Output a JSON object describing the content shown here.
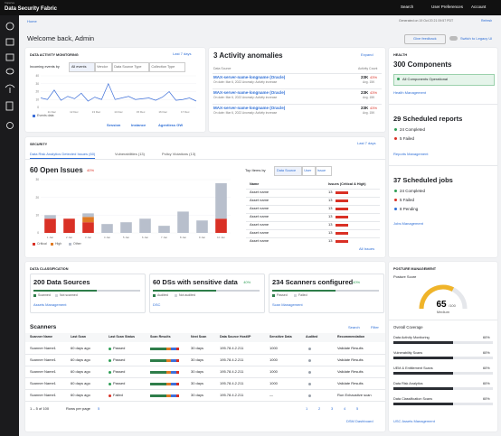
{
  "header": {
    "brand_small": "Imperva",
    "brand": "Data Security Fabric",
    "search": "Search",
    "preferences": "User Preferences",
    "account": "Account"
  },
  "breadcrumb": "Home",
  "generated": "Generated on 19 Oct 20 21 09:57 PDT",
  "refresh": "Refresh",
  "welcome": "Welcome back, Admin",
  "feedback": "Give feedback",
  "legacy": "Switch to Legacy UI",
  "dam": {
    "title": "DATA ACTIVITY MONITORING",
    "period": "Last 7 days",
    "filter_label": "Incoming events by",
    "tabs": [
      "All events",
      "Vendor",
      "Data Source Type",
      "Collection Type"
    ],
    "chart": {
      "type": "line",
      "xlabels": [
        "11 Dec",
        "12 Dec",
        "13 Dec",
        "14 Dec",
        "15 Dec",
        "16 Dec",
        "17 Dec"
      ],
      "values": [
        12,
        10,
        22,
        9,
        14,
        11,
        18,
        8,
        13,
        10,
        30,
        10,
        12,
        14,
        10,
        11,
        12,
        9,
        13,
        20,
        9,
        10,
        12,
        8
      ],
      "ylim": [
        0,
        40
      ],
      "yticks": [
        0,
        10,
        20,
        30,
        40
      ],
      "color": "#3d6fd9",
      "legend": "Events data"
    },
    "links": [
      "Session",
      "Instance",
      "Agentless GW"
    ]
  },
  "anomalies": {
    "title": "3 Activity anomalies",
    "expand": "Expand",
    "col_source": "Data Source",
    "col_count": "Activity Count",
    "rows": [
      {
        "name": "MAX-server-name-longname (Oracle)",
        "sub": "On date: Mar 6, 2022   Anomaly: Activity increase",
        "count": "23K",
        "change": "43%",
        "avg": "Avg. 15K"
      },
      {
        "name": "MAX-server-name-longname (Oracle)",
        "sub": "On date: Mar 6, 2022   Anomaly: Activity increase",
        "count": "23K",
        "change": "43%",
        "avg": "Avg. 15K"
      },
      {
        "name": "MAX-server-name-longname (Oracle)",
        "sub": "On date: Mar 6, 2022   Anomaly: Activity increase",
        "count": "23K",
        "change": "43%",
        "avg": "Avg. 15K"
      }
    ]
  },
  "health": {
    "label": "HEALTH",
    "components": "300 Components",
    "status": "All Components Operational",
    "health_link": "Health Management",
    "reports": "29 Scheduled reports",
    "reports_items": [
      {
        "text": "24 Completed",
        "color": "#2e9e55"
      },
      {
        "text": "5 Failed",
        "color": "#d93025"
      }
    ],
    "reports_link": "Reports Management",
    "jobs": "37 Scheduled jobs",
    "jobs_items": [
      {
        "text": "24 Completed",
        "color": "#2e9e55"
      },
      {
        "text": "5 Failed",
        "color": "#d93025"
      },
      {
        "text": "8 Pending",
        "color": "#2f6fd6"
      }
    ],
    "jobs_link": "Jobs Management"
  },
  "security": {
    "label": "SECURITY",
    "period": "Last 7 days",
    "tabs": [
      "Data Risk Analytics Detected Issues (60)",
      "Vulnerabilities (13)",
      "Policy Violations (13)"
    ],
    "open": "60 Open Issues",
    "change": "40%",
    "chart": {
      "type": "bar",
      "categories": [
        "1 Jan",
        "2 Jan",
        "3 Jan",
        "4 Jan",
        "5 Jan",
        "6 Jan",
        "7 Jan",
        "8 Jan",
        "9 Jan",
        "10 Jan"
      ],
      "ylim": [
        0,
        30
      ],
      "yticks": [
        0,
        10,
        20,
        30
      ],
      "series": [
        {
          "name": "Critical",
          "color": "#d93025",
          "values": [
            8,
            8,
            6,
            0,
            0,
            0,
            0,
            0,
            0,
            8
          ]
        },
        {
          "name": "High",
          "color": "#e07b24",
          "values": [
            0,
            0,
            3,
            0,
            0,
            0,
            0,
            0,
            0,
            0
          ]
        },
        {
          "name": "Other",
          "color": "#b8bfcc",
          "values": [
            2,
            0,
            2,
            5,
            6,
            8,
            4,
            12,
            7,
            20
          ]
        }
      ]
    },
    "top_label": "Top Items by",
    "toggles": [
      "Data Source",
      "User",
      "Issue"
    ],
    "col_name": "Name",
    "col_issues": "Issues (Critical & High)",
    "rows": [
      {
        "name": "Asset name",
        "value": 13
      },
      {
        "name": "Asset name",
        "value": 13
      },
      {
        "name": "Asset name",
        "value": 13
      },
      {
        "name": "Asset name",
        "value": 13
      },
      {
        "name": "Asset name",
        "value": 13
      },
      {
        "name": "Asset name",
        "value": 13
      },
      {
        "name": "Asset name",
        "value": 13
      }
    ],
    "all_link": "All Issues"
  },
  "classification": {
    "label": "DATA CLASSIFICATION",
    "cards": [
      {
        "title": "200 Data Sources",
        "legend": [
          "Scanned",
          "Not scanned"
        ],
        "link": "Assets Management"
      },
      {
        "title": "60 DSs with sensitive data",
        "change": "40%",
        "legend": [
          "Audited",
          "Not audited"
        ],
        "link": "DSC"
      },
      {
        "title": "234 Scanners configured",
        "change": "40%",
        "legend": [
          "Passed",
          "Failed"
        ],
        "link": "Scan Management"
      }
    ]
  },
  "scanners": {
    "title": "Scanners",
    "search": "Search",
    "filter": "Filter",
    "columns": [
      "Scanner Name",
      "Last Scan",
      "Last Scan Status",
      "Scan Results",
      "Next Scan",
      "Data Source Host/IP",
      "Sensitive Data",
      "Audited",
      "Recommendation"
    ],
    "rows": [
      {
        "name": "Scanner Name1",
        "last_scan": "60 days ago",
        "status": "Passed",
        "status_color": "#2e9e55",
        "next_scan": "30 days",
        "host": "195.78.4.2.211",
        "sensitive": "1000",
        "recommendation": "Validate Results"
      },
      {
        "name": "Scanner Name1",
        "last_scan": "60 days ago",
        "status": "Passed",
        "status_color": "#2e9e55",
        "next_scan": "30 days",
        "host": "195.78.4.2.211",
        "sensitive": "1000",
        "recommendation": "Validate Results"
      },
      {
        "name": "Scanner Name1",
        "last_scan": "60 days ago",
        "status": "Passed",
        "status_color": "#2e9e55",
        "next_scan": "30 days",
        "host": "195.78.4.2.211",
        "sensitive": "1000",
        "recommendation": "Validate Results"
      },
      {
        "name": "Scanner Name1",
        "last_scan": "60 days ago",
        "status": "Passed",
        "status_color": "#2e9e55",
        "next_scan": "30 days",
        "host": "195.78.4.2.211",
        "sensitive": "1000",
        "recommendation": "Validate Results"
      },
      {
        "name": "Scanner Name1",
        "last_scan": "60 days ago",
        "status": "Failed",
        "status_color": "#d93025",
        "next_scan": "30 days",
        "host": "195.78.4.2.211",
        "sensitive": "—",
        "recommendation": "Run Exhaustive scan"
      }
    ],
    "range": "1 – 5 of 100",
    "rows_label": "Rows per page",
    "rows_value": "5",
    "pages": [
      "1",
      "2",
      "3",
      "4",
      "5"
    ],
    "link": "DSM Dashboard"
  },
  "posture": {
    "label": "POSTURE MANAGEMENT",
    "score_label": "Posture Score",
    "score": 65,
    "max": "/100",
    "max_value": 100,
    "level": "Medium",
    "coverage": "Overall Coverage",
    "items": [
      {
        "name": "Data Activity Monitoring",
        "value": 60,
        "value_label": "60%"
      },
      {
        "name": "Vulnerability Scans",
        "value": 60,
        "value_label": "60%"
      },
      {
        "name": "UEM & Entitlement Scans",
        "value": 60,
        "value_label": "60%"
      },
      {
        "name": "Data Risk Analytics",
        "value": 60,
        "value_label": "60%"
      },
      {
        "name": "Data Classification Scans",
        "value": 60,
        "value_label": "60%"
      }
    ],
    "link": "USC Assets Management"
  }
}
